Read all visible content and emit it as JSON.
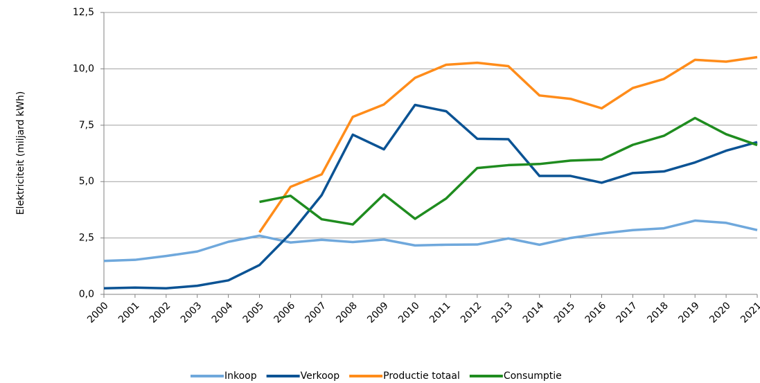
{
  "chart_data": {
    "type": "line",
    "y_label": "Elektriciteit (miljard kWh)",
    "categories": [
      "2000",
      "2001",
      "2002",
      "2003",
      "2004",
      "2005",
      "2006",
      "2007",
      "2008",
      "2009",
      "2010",
      "2011",
      "2012",
      "2013",
      "2014",
      "2015",
      "2016",
      "2017",
      "2018",
      "2019",
      "2020",
      "2021"
    ],
    "series": [
      {
        "name": "Inkoop",
        "color": "#6fa8dc",
        "values": [
          1.48,
          1.53,
          1.7,
          1.9,
          2.33,
          2.6,
          2.3,
          2.42,
          2.32,
          2.43,
          2.17,
          2.2,
          2.21,
          2.48,
          2.2,
          2.5,
          2.7,
          2.85,
          2.93,
          3.27,
          3.17,
          2.85
        ]
      },
      {
        "name": "Verkoop",
        "color": "#0b5394",
        "values": [
          0.27,
          0.3,
          0.27,
          0.38,
          0.62,
          1.3,
          2.7,
          4.4,
          7.08,
          6.43,
          8.4,
          8.12,
          6.9,
          6.88,
          5.25,
          5.25,
          4.95,
          5.38,
          5.45,
          5.85,
          6.37,
          6.75
        ]
      },
      {
        "name": "Productie totaal",
        "color": "#ff8c1a",
        "values": [
          null,
          null,
          null,
          null,
          null,
          2.75,
          4.77,
          5.32,
          7.87,
          8.42,
          9.6,
          10.18,
          10.27,
          10.12,
          8.82,
          8.67,
          8.25,
          9.15,
          9.55,
          10.4,
          10.32,
          10.52
        ]
      },
      {
        "name": "Consumptie",
        "color": "#1f8c1f",
        "values": [
          null,
          null,
          null,
          null,
          null,
          4.1,
          4.37,
          3.33,
          3.1,
          4.43,
          3.35,
          4.25,
          5.6,
          5.73,
          5.78,
          5.93,
          5.98,
          6.63,
          7.03,
          7.82,
          7.1,
          6.62
        ]
      }
    ],
    "ylim": [
      0,
      12.5
    ],
    "yticks": [
      {
        "value": 0,
        "label": "0,0"
      },
      {
        "value": 2.5,
        "label": "2,5"
      },
      {
        "value": 5,
        "label": "5,0"
      },
      {
        "value": 7.5,
        "label": "7,5"
      },
      {
        "value": 10,
        "label": "10,0"
      },
      {
        "value": 12.5,
        "label": "12,5"
      }
    ],
    "grid": true,
    "legend": "bottom"
  }
}
